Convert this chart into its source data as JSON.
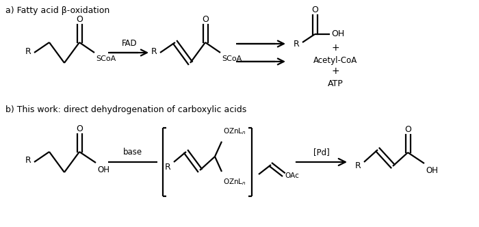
{
  "bg_color": "#ffffff",
  "text_color": "#000000",
  "label_a": "a) Fatty acid β-oxidation",
  "label_b": "b) This work: direct dehydrogenation of carboxylic acids",
  "fad_label": "FAD",
  "base_label": "base",
  "pd_label": "[Pd]",
  "lw": 1.6
}
